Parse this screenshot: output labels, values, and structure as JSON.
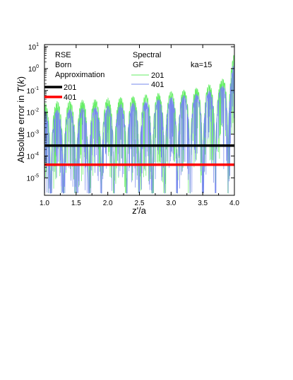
{
  "chart_data": {
    "type": "line",
    "xlabel": "z'/a",
    "ylabel_prefix": "Absolute error in ",
    "ylabel_symbol": "T",
    "ylabel_open": "(",
    "ylabel_var": "k",
    "ylabel_close": ")",
    "xlim": [
      1.0,
      4.0
    ],
    "ylim_log10": [
      -5.8,
      1.1
    ],
    "log_y": true,
    "x_ticks": [
      "1.0",
      "1.5",
      "2.0",
      "2.5",
      "3.0",
      "3.5",
      "4.0"
    ],
    "y_ticks": [
      {
        "base": "10",
        "exp": "-5",
        "value": 1e-05
      },
      {
        "base": "10",
        "exp": "-4",
        "value": 0.0001
      },
      {
        "base": "10",
        "exp": "-3",
        "value": 0.001
      },
      {
        "base": "10",
        "exp": "-2",
        "value": 0.01
      },
      {
        "base": "10",
        "exp": "-1",
        "value": 0.1
      },
      {
        "base": "10",
        "exp": "0",
        "value": 1
      },
      {
        "base": "10",
        "exp": "1",
        "value": 10
      }
    ],
    "legend": {
      "group1_lines": [
        "RSE",
        "Born",
        "Approximation"
      ],
      "group2_lines": [
        "Spectral",
        "GF"
      ],
      "annotation": "ka=15"
    },
    "series": [
      {
        "name": "201",
        "group": "RSE Born Approximation",
        "color": "#000000",
        "constant_value": 0.0003
      },
      {
        "name": "401",
        "group": "RSE Born Approximation",
        "color": "#ff0000",
        "constant_value": 4e-05
      },
      {
        "name": "201",
        "group": "Spectral GF",
        "color": "#66ee66",
        "oscillation_period": 0.2,
        "envelope_x": [
          1.0,
          1.5,
          2.0,
          2.5,
          3.0,
          3.5,
          3.8,
          4.0
        ],
        "envelope_peak": [
          0.03,
          0.035,
          0.045,
          0.06,
          0.09,
          0.15,
          0.3,
          5.0
        ],
        "trough_min": 2e-06
      },
      {
        "name": "401",
        "group": "Spectral GF",
        "color": "#7788ee",
        "oscillation_period": 0.2,
        "envelope_x": [
          1.0,
          1.5,
          2.0,
          2.5,
          3.0,
          3.5,
          3.8,
          4.0
        ],
        "envelope_peak": [
          0.012,
          0.015,
          0.02,
          0.03,
          0.05,
          0.08,
          0.15,
          2.0
        ],
        "trough_min": 2e-06
      }
    ]
  }
}
